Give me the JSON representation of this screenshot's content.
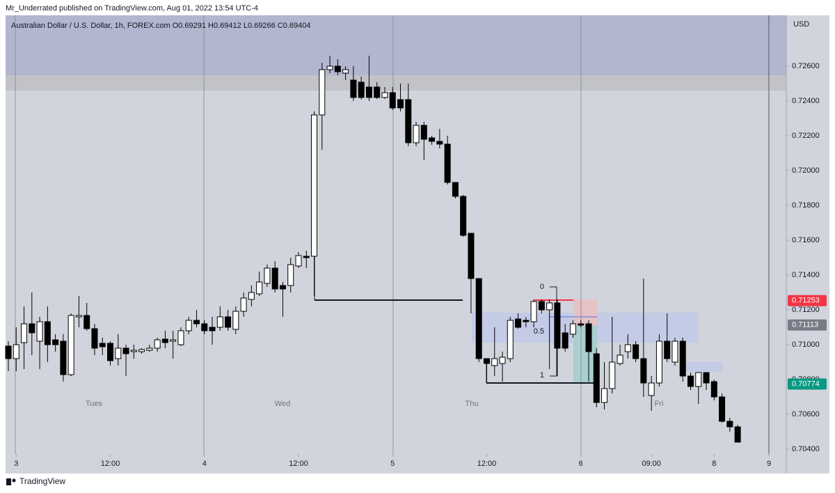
{
  "header": "Mr_Underrated published on TradingView.com, Aug 01, 2022 13:54 UTC-4",
  "footer": "TradingView",
  "chart_data": {
    "type": "candlestick",
    "title": "Australian Dollar / U.S. Dollar, 1h, FOREX.com  O0.69291  H0.69412  L0.69266  C0.69404",
    "y_axis_label": "USD",
    "up_color": "#ffffff",
    "down_color": "#000000",
    "x": [
      0,
      1,
      2,
      3,
      4,
      5,
      6,
      7,
      8,
      9,
      10,
      11,
      12,
      13,
      14,
      15,
      16,
      17,
      18,
      19,
      20,
      21,
      22,
      23,
      24,
      25,
      26,
      27,
      28,
      29,
      30,
      31,
      32,
      33,
      34,
      35,
      36,
      37,
      38,
      39,
      40,
      41,
      42,
      43,
      44,
      45,
      46,
      47,
      48,
      49,
      50,
      51,
      52,
      53,
      54,
      55,
      56,
      57,
      58,
      59,
      60,
      61,
      62,
      63,
      64,
      65,
      66,
      67,
      68,
      69,
      70,
      71,
      72,
      73,
      74,
      75,
      76,
      77,
      78,
      79,
      80,
      81,
      82,
      83,
      84,
      85,
      86,
      87,
      88,
      89,
      90,
      91,
      92,
      93
    ],
    "open": [
      0.70992,
      0.7092,
      0.71012,
      0.7112,
      0.7102,
      0.71132,
      0.71028,
      0.7102,
      0.70828,
      0.7116,
      0.71168,
      0.71092,
      0.71008,
      0.71008,
      0.7092,
      0.7098,
      0.7096,
      0.7096,
      0.70968,
      0.7098,
      0.71032,
      0.7102,
      0.71,
      0.7108,
      0.7114,
      0.7112,
      0.711,
      0.711,
      0.7116,
      0.71088,
      0.71192,
      0.7126,
      0.71292,
      0.71352,
      0.7144,
      0.7134,
      0.7134,
      0.71452,
      0.71508,
      0.71508,
      0.7232,
      0.7258,
      0.726,
      0.7256,
      0.7252,
      0.72508,
      0.7248,
      0.7248,
      0.7242,
      0.72448,
      0.72408,
      0.72408,
      0.7216,
      0.7226,
      0.72188,
      0.72168,
      0.72152,
      0.71932,
      0.71852,
      0.7164,
      0.7138,
      0.7092,
      0.7088,
      0.70892,
      0.7092,
      0.71148,
      0.7114,
      0.71132,
      0.71248,
      0.712,
      0.7124,
      0.71068,
      0.7106,
      0.7112,
      0.7112,
      0.70948,
      0.70668,
      0.70748,
      0.70892,
      0.7096,
      0.71,
      0.7092,
      0.70708,
      0.7078,
      0.7102,
      0.709,
      0.7102,
      0.7082,
      0.7076,
      0.7084,
      0.70788,
      0.707,
      0.7056,
      0.70528
    ],
    "high": [
      0.7102,
      0.711,
      0.7122,
      0.713,
      0.7116,
      0.7122,
      0.7106,
      0.7106,
      0.7118,
      0.7128,
      0.7124,
      0.7112,
      0.7104,
      0.7102,
      0.7106,
      0.71,
      0.71,
      0.7098,
      0.71,
      0.7104,
      0.7108,
      0.7108,
      0.711,
      0.7116,
      0.712,
      0.7114,
      0.7116,
      0.7122,
      0.712,
      0.7122,
      0.713,
      0.7134,
      0.7142,
      0.7146,
      0.7148,
      0.7136,
      0.715,
      0.71532,
      0.7154,
      0.7234,
      0.7262,
      0.7266,
      0.7264,
      0.726,
      0.726,
      0.7254,
      0.7266,
      0.72508,
      0.7248,
      0.7248,
      0.725,
      0.725,
      0.7228,
      0.7228,
      0.722,
      0.7224,
      0.722,
      0.71932,
      0.7186,
      0.7164,
      0.7138,
      0.7092,
      0.711,
      0.7096,
      0.7116,
      0.7118,
      0.7116,
      0.7126,
      0.7126,
      0.7126,
      0.7126,
      0.7112,
      0.7114,
      0.7114,
      0.7114,
      0.7098,
      0.709,
      0.7116,
      0.71,
      0.7106,
      0.7102,
      0.7138,
      0.7082,
      0.7106,
      0.7118,
      0.7104,
      0.7104,
      0.7084,
      0.7084,
      0.7084,
      0.708,
      0.7072,
      0.7058,
      0.7054
    ],
    "low": [
      0.70848,
      0.70848,
      0.7086,
      0.7094,
      0.7086,
      0.709,
      0.7096,
      0.70788,
      0.7082,
      0.711,
      0.7108,
      0.7094,
      0.7094,
      0.7088,
      0.7088,
      0.7082,
      0.7092,
      0.70948,
      0.7096,
      0.7096,
      0.7098,
      0.7092,
      0.70992,
      0.7106,
      0.711,
      0.7106,
      0.71,
      0.7108,
      0.7108,
      0.7106,
      0.7116,
      0.7122,
      0.7128,
      0.71332,
      0.713,
      0.7116,
      0.713,
      0.7144,
      0.7144,
      0.7128,
      0.7212,
      0.7256,
      0.72548,
      0.7252,
      0.724,
      0.72408,
      0.724,
      0.72412,
      0.72412,
      0.72348,
      0.7234,
      0.7214,
      0.7214,
      0.7206,
      0.72148,
      0.72128,
      0.7192,
      0.7184,
      0.7162,
      0.7118,
      0.709,
      0.7078,
      0.7082,
      0.70788,
      0.709,
      0.71092,
      0.711,
      0.711,
      0.7118,
      0.7086,
      0.7082,
      0.7096,
      0.7104,
      0.711,
      0.70788,
      0.7064,
      0.70628,
      0.7072,
      0.7088,
      0.7092,
      0.709,
      0.707,
      0.7062,
      0.7076,
      0.709,
      0.7088,
      0.70788,
      0.7074,
      0.7066,
      0.7074,
      0.7068,
      0.70552,
      0.705,
      0.7044
    ],
    "close": [
      0.7092,
      0.71,
      0.7112,
      0.71068,
      0.71132,
      0.71,
      0.71,
      0.70828,
      0.71168,
      0.71168,
      0.71092,
      0.7098,
      0.70988,
      0.70908,
      0.7098,
      0.70948,
      0.70968,
      0.70972,
      0.7098,
      0.71028,
      0.71012,
      0.71028,
      0.7108,
      0.7114,
      0.7112,
      0.7108,
      0.7108,
      0.7116,
      0.711,
      0.71192,
      0.71268,
      0.713,
      0.7136,
      0.7144,
      0.7132,
      0.7132,
      0.7146,
      0.71512,
      0.715,
      0.7232,
      0.7258,
      0.726,
      0.72568,
      0.7258,
      0.7242,
      0.7242,
      0.7242,
      0.7242,
      0.72448,
      0.7236,
      0.7236,
      0.7216,
      0.7226,
      0.7218,
      0.72168,
      0.72152,
      0.71932,
      0.71852,
      0.71628,
      0.7138,
      0.7092,
      0.70892,
      0.7092,
      0.70928,
      0.7114,
      0.711,
      0.71132,
      0.71248,
      0.712,
      0.7124,
      0.7098,
      0.7098,
      0.7112,
      0.71112,
      0.7096,
      0.70668,
      0.70748,
      0.709,
      0.7094,
      0.71,
      0.7092,
      0.7078,
      0.7078,
      0.7102,
      0.7092,
      0.7102,
      0.7082,
      0.7076,
      0.7084,
      0.7078,
      0.707,
      0.7056,
      0.70528,
      0.7044
    ],
    "xlim": [
      -0.355,
      99.2
    ],
    "xticks": [
      {
        "value": 1,
        "label": "3"
      },
      {
        "value": 13,
        "label": "12:00"
      },
      {
        "value": 25,
        "label": "4"
      },
      {
        "value": 37,
        "label": "12:00"
      },
      {
        "value": 49,
        "label": "5"
      },
      {
        "value": 61,
        "label": "12:00"
      },
      {
        "value": 73,
        "label": "6"
      },
      {
        "value": 82,
        "label": "09:00"
      },
      {
        "value": 90,
        "label": "8"
      },
      {
        "value": 97,
        "label": "9"
      }
    ],
    "ylim": [
      0.70372,
      0.72892
    ],
    "yticks": [
      {
        "value": 0.704,
        "label": "0.70400"
      },
      {
        "value": 0.706,
        "label": "0.70600"
      },
      {
        "value": 0.708,
        "label": "0.70800"
      },
      {
        "value": 0.71,
        "label": "0.71000"
      },
      {
        "value": 0.712,
        "label": "0.71200"
      },
      {
        "value": 0.714,
        "label": "0.71400"
      },
      {
        "value": 0.716,
        "label": "0.71600"
      },
      {
        "value": 0.718,
        "label": "0.71800"
      },
      {
        "value": 0.72,
        "label": "0.72000"
      },
      {
        "value": 0.722,
        "label": "0.72200"
      },
      {
        "value": 0.724,
        "label": "0.72400"
      },
      {
        "value": 0.726,
        "label": "0.72600"
      }
    ],
    "price_labels": [
      {
        "value": 0.71253,
        "color": "#f23645"
      },
      {
        "value": 0.71113,
        "color": "#787b86"
      },
      {
        "value": 0.70774,
        "color": "#089981"
      }
    ],
    "day_labels": [
      "Tues",
      "Wed",
      "Thu",
      "Fri"
    ],
    "fib_labels": [
      "0",
      "0.5",
      "1"
    ]
  }
}
